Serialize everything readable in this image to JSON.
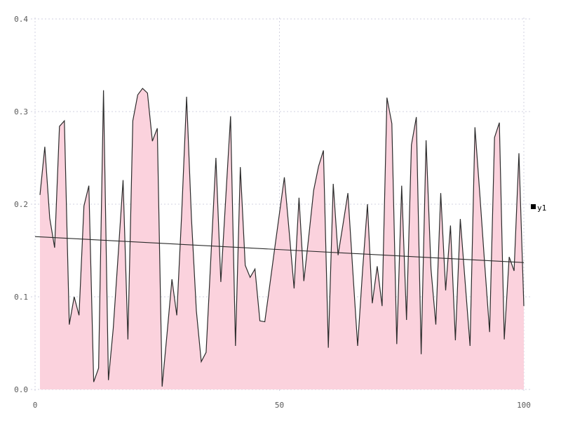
{
  "chart_data": {
    "type": "area",
    "title": "",
    "xlabel": "",
    "ylabel": "",
    "grid": true,
    "xlim": [
      0,
      101
    ],
    "ylim": [
      0,
      0.4
    ],
    "x_ticks": {
      "values": [
        0,
        50,
        100
      ],
      "labels": [
        "0",
        "50",
        "100"
      ]
    },
    "y_ticks": {
      "values": [
        0,
        0.1,
        0.2,
        0.3,
        0.4
      ],
      "labels": [
        "0.0",
        "0.1",
        "0.2",
        "0.3",
        "0.4"
      ]
    },
    "series": [
      {
        "name": "y1",
        "x": [
          1,
          2,
          3,
          4,
          5,
          6,
          7,
          8,
          9,
          10,
          11,
          12,
          13,
          14,
          15,
          16,
          17,
          18,
          19,
          20,
          21,
          22,
          23,
          24,
          25,
          26,
          27,
          28,
          29,
          30,
          31,
          32,
          33,
          34,
          35,
          36,
          37,
          38,
          39,
          40,
          41,
          42,
          43,
          44,
          45,
          46,
          47,
          48,
          49,
          50,
          51,
          52,
          53,
          54,
          55,
          56,
          57,
          58,
          59,
          60,
          61,
          62,
          63,
          64,
          65,
          66,
          67,
          68,
          69,
          70,
          71,
          72,
          73,
          74,
          75,
          76,
          77,
          78,
          79,
          80,
          81,
          82,
          83,
          84,
          85,
          86,
          87,
          88,
          89,
          90,
          91,
          92,
          93,
          94,
          95,
          96,
          97,
          98,
          99,
          100
        ],
        "values": [
          0.21,
          0.262,
          0.185,
          0.153,
          0.284,
          0.29,
          0.07,
          0.1,
          0.08,
          0.198,
          0.22,
          0.008,
          0.023,
          0.323,
          0.01,
          0.066,
          0.145,
          0.226,
          0.054,
          0.29,
          0.318,
          0.325,
          0.32,
          0.268,
          0.282,
          0.003,
          0.06,
          0.119,
          0.08,
          0.19,
          0.316,
          0.185,
          0.085,
          0.03,
          0.04,
          0.145,
          0.25,
          0.116,
          0.205,
          0.295,
          0.047,
          0.24,
          0.134,
          0.121,
          0.13,
          0.074,
          0.073,
          0.112,
          0.151,
          0.19,
          0.229,
          0.17,
          0.109,
          0.207,
          0.117,
          0.165,
          0.215,
          0.241,
          0.258,
          0.045,
          0.222,
          0.145,
          0.178,
          0.212,
          0.128,
          0.047,
          0.128,
          0.2,
          0.093,
          0.133,
          0.09,
          0.315,
          0.287,
          0.049,
          0.22,
          0.075,
          0.264,
          0.294,
          0.038,
          0.269,
          0.13,
          0.07,
          0.212,
          0.107,
          0.177,
          0.053,
          0.184,
          0.115,
          0.047,
          0.283,
          0.21,
          0.135,
          0.062,
          0.272,
          0.288,
          0.054,
          0.143,
          0.128,
          0.255,
          0.09
        ]
      }
    ],
    "trend_line": {
      "x_start": 0,
      "y_start": 0.165,
      "x_end": 100,
      "y_end": 0.137
    },
    "legend": {
      "position": "right-middle",
      "entries": [
        {
          "label": "y1",
          "marker": "filled-square",
          "marker_color": "#000000"
        }
      ]
    },
    "colors": {
      "background": "#ffffff",
      "area_fill": "#fbd2dd",
      "series_line": "#2b2b2b",
      "trend_line": "#2b2b2b",
      "grid": "#d2d2e0",
      "tick_label": "#595959",
      "legend_text": "#000000"
    }
  }
}
